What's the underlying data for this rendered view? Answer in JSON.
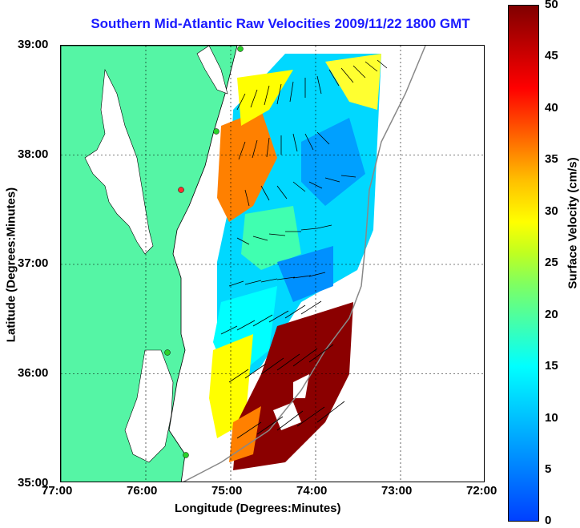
{
  "title": "Southern Mid-Atlantic Raw Velocities 2009/11/22 1800 GMT",
  "xaxis": {
    "label": "Longitude (Degrees:Minutes)",
    "ticks": [
      "77:00",
      "76:00",
      "75:00",
      "74:00",
      "73:00",
      "72:00"
    ]
  },
  "yaxis": {
    "label": "Latitude (Degrees:Minutes)",
    "ticks": [
      "39:00",
      "38:00",
      "37:00",
      "36:00",
      "35:00"
    ]
  },
  "colorbar": {
    "label": "Surface Velocity (cm/s)",
    "ticks": [
      "50",
      "45",
      "40",
      "35",
      "30",
      "25",
      "20",
      "15",
      "10",
      "5",
      "0"
    ],
    "range": [
      0,
      50
    ]
  },
  "colors": {
    "land": "#55f5a5",
    "title": "#1a1aff",
    "maxvel": "#8b0000"
  },
  "map": {
    "lon_range": [
      -77,
      -72
    ],
    "lat_range": [
      35,
      39
    ],
    "grid": true
  }
}
